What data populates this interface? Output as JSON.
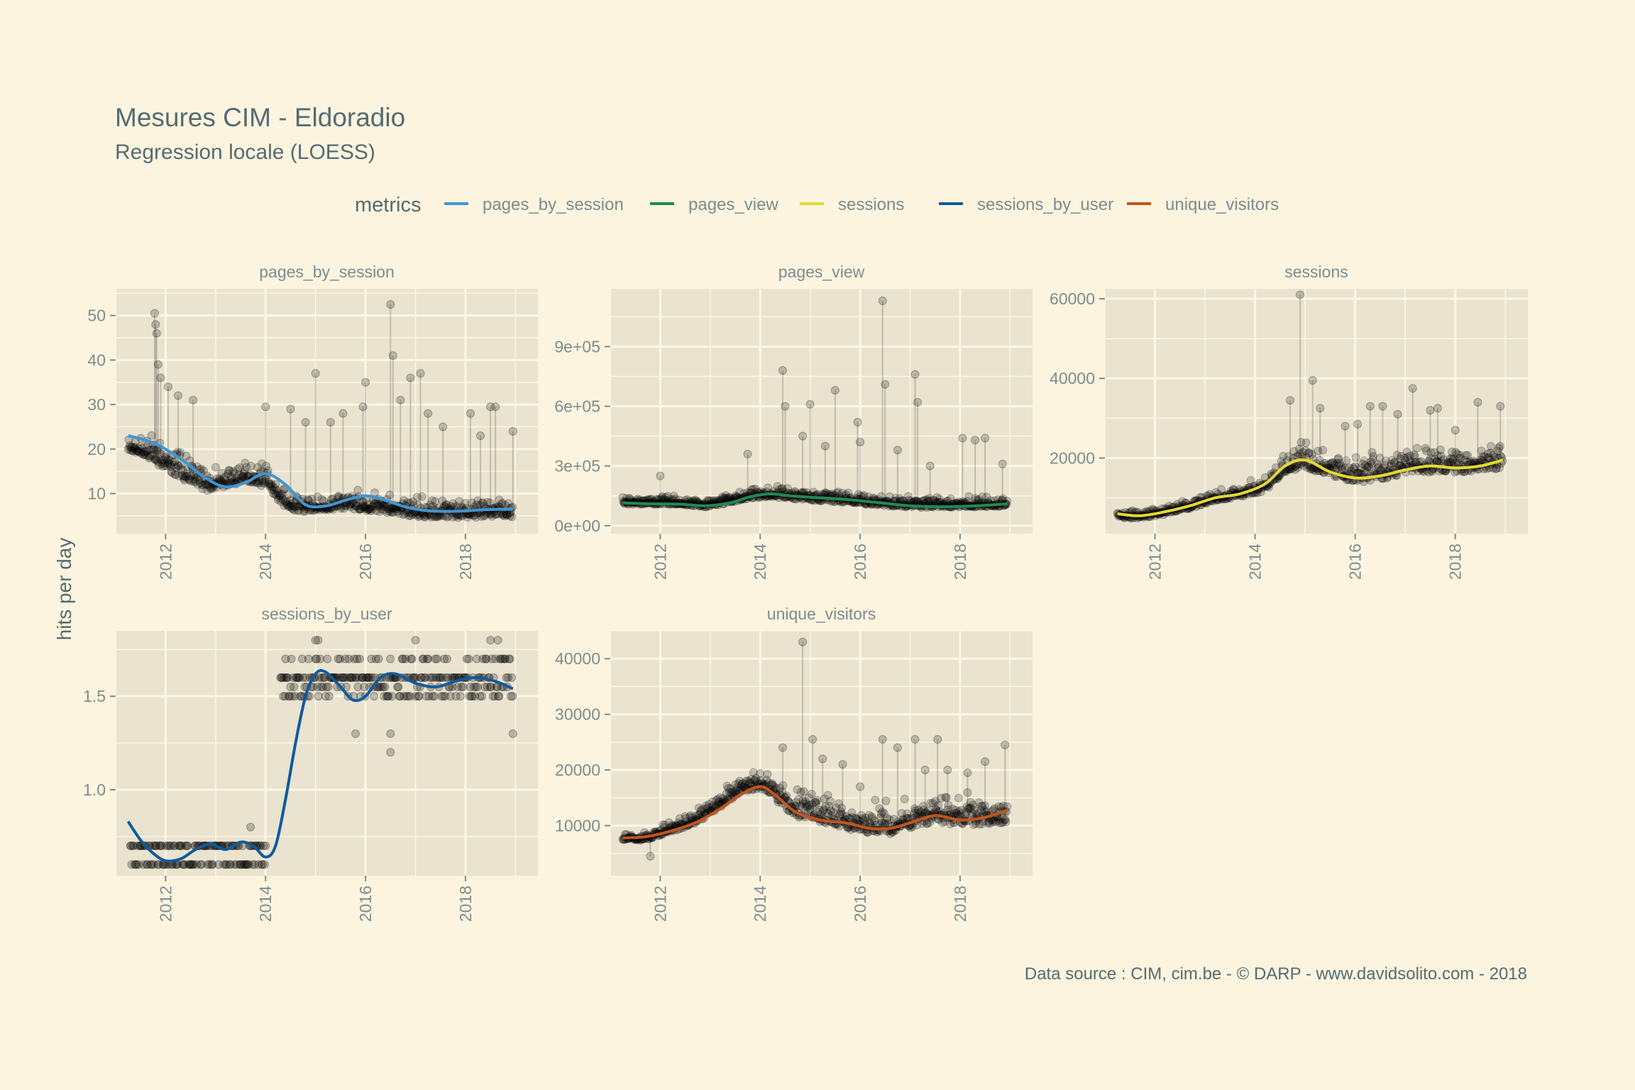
{
  "colors": {
    "page_background": "#fcf4de",
    "panel_background": "#e9e3cf",
    "grid": "#fcf6e6",
    "point": "#000000",
    "text": "#556b73",
    "muted_text": "#7d8c90"
  },
  "chart_data": {
    "type": "scatter",
    "title": "Mesures CIM - Eldoradio",
    "subtitle": "Regression locale (LOESS)",
    "ylabel": "hits per day",
    "xlabel": "",
    "caption": "Data source : CIM, cim.be - © DARP - www.davidsolito.com - 2018",
    "legend": {
      "title": "metrics",
      "position": "top",
      "entries": [
        {
          "name": "pages_by_session",
          "color": "#3d96d6"
        },
        {
          "name": "pages_view",
          "color": "#1e8a54"
        },
        {
          "name": "sessions",
          "color": "#e5d832"
        },
        {
          "name": "sessions_by_user",
          "color": "#0f5a9e"
        },
        {
          "name": "unique_visitors",
          "color": "#c2541e"
        }
      ]
    },
    "grid": true,
    "x_ticks": [
      2012,
      2014,
      2016,
      2018
    ],
    "xlim": [
      2011.0,
      2019.45
    ],
    "panels": [
      {
        "metric": "pages_by_session",
        "color": "#3d96d6",
        "ylim": [
          1,
          56
        ],
        "y_ticks": [
          10,
          20,
          30,
          40,
          50
        ],
        "y_tick_labels": [
          "10",
          "20",
          "30",
          "40",
          "50"
        ],
        "smooth_x": [
          2011.25,
          2011.6,
          2012.0,
          2012.4,
          2012.8,
          2013.2,
          2013.6,
          2014.0,
          2014.4,
          2014.8,
          2015.2,
          2015.6,
          2016.0,
          2016.4,
          2016.8,
          2017.2,
          2017.6,
          2018.0,
          2018.4,
          2018.95
        ],
        "smooth_y": [
          23,
          22,
          20,
          17,
          13.5,
          11.5,
          12.5,
          14.5,
          12,
          7.5,
          7.2,
          8.5,
          9.5,
          8.5,
          7,
          6.2,
          6,
          6.1,
          6.4,
          6.5
        ],
        "points": {
          "level": [
            [
              2011.25,
              20
            ],
            [
              2011.6,
              19
            ],
            [
              2012.0,
              16
            ],
            [
              2012.4,
              13
            ],
            [
              2012.8,
              11
            ],
            [
              2013.2,
              12
            ],
            [
              2013.6,
              13
            ],
            [
              2014.0,
              12
            ],
            [
              2014.4,
              7
            ],
            [
              2014.8,
              6
            ],
            [
              2015.6,
              7
            ],
            [
              2016.4,
              6
            ],
            [
              2017.2,
              5
            ],
            [
              2018.0,
              5
            ],
            [
              2018.95,
              5
            ]
          ],
          "spread": [
            [
              2011.25,
              4
            ],
            [
              2011.6,
              6
            ],
            [
              2012.0,
              9
            ],
            [
              2012.4,
              8
            ],
            [
              2012.8,
              5
            ],
            [
              2013.2,
              5
            ],
            [
              2013.6,
              5
            ],
            [
              2014.0,
              6
            ],
            [
              2014.4,
              4
            ],
            [
              2015.0,
              4
            ],
            [
              2016.0,
              5
            ],
            [
              2017.0,
              5
            ],
            [
              2018.0,
              5
            ],
            [
              2018.95,
              5
            ]
          ],
          "spikes": [
            [
              2011.78,
              50.5
            ],
            [
              2011.8,
              48
            ],
            [
              2011.82,
              46
            ],
            [
              2011.85,
              39
            ],
            [
              2011.9,
              36
            ],
            [
              2012.05,
              34
            ],
            [
              2012.25,
              32
            ],
            [
              2012.55,
              31
            ],
            [
              2014.0,
              29.5
            ],
            [
              2014.5,
              29
            ],
            [
              2014.8,
              26
            ],
            [
              2015.0,
              37
            ],
            [
              2015.3,
              26
            ],
            [
              2015.55,
              28
            ],
            [
              2015.95,
              29.5
            ],
            [
              2016.0,
              35
            ],
            [
              2016.5,
              52.5
            ],
            [
              2016.55,
              41
            ],
            [
              2016.7,
              31
            ],
            [
              2016.9,
              36
            ],
            [
              2017.1,
              37
            ],
            [
              2017.25,
              28
            ],
            [
              2017.55,
              25
            ],
            [
              2018.1,
              28
            ],
            [
              2018.3,
              23
            ],
            [
              2018.5,
              29.5
            ],
            [
              2018.6,
              29.5
            ],
            [
              2018.95,
              24
            ]
          ]
        }
      },
      {
        "metric": "pages_view",
        "color": "#1e8a54",
        "ylim": [
          -40000,
          1190000
        ],
        "y_ticks": [
          0,
          300000,
          600000,
          900000
        ],
        "y_tick_labels": [
          "0e+00",
          "3e+05",
          "6e+05",
          "9e+05"
        ],
        "smooth_x": [
          2011.25,
          2011.8,
          2012.4,
          2012.9,
          2013.4,
          2013.8,
          2014.2,
          2014.6,
          2015.2,
          2015.8,
          2016.4,
          2017.0,
          2017.6,
          2018.2,
          2018.95
        ],
        "smooth_y": [
          115000,
          110000,
          108000,
          100000,
          115000,
          145000,
          160000,
          150000,
          140000,
          130000,
          115000,
          100000,
          95000,
          98000,
          110000
        ],
        "points": {
          "level": [
            [
              2011.25,
              110000
            ],
            [
              2012.4,
              110000
            ],
            [
              2012.9,
              95000
            ],
            [
              2013.8,
              140000
            ],
            [
              2014.2,
              150000
            ],
            [
              2014.6,
              140000
            ],
            [
              2015.8,
              120000
            ],
            [
              2016.4,
              105000
            ],
            [
              2017.2,
              95000
            ],
            [
              2018.95,
              100000
            ]
          ],
          "spread": [
            [
              2011.25,
              40000
            ],
            [
              2014.0,
              60000
            ],
            [
              2015.0,
              70000
            ],
            [
              2016.0,
              70000
            ],
            [
              2017.0,
              60000
            ],
            [
              2018.95,
              60000
            ]
          ],
          "spikes": [
            [
              2012.0,
              250000
            ],
            [
              2013.75,
              360000
            ],
            [
              2014.45,
              780000
            ],
            [
              2014.5,
              600000
            ],
            [
              2014.85,
              450000
            ],
            [
              2015.0,
              610000
            ],
            [
              2015.3,
              400000
            ],
            [
              2015.5,
              680000
            ],
            [
              2015.95,
              520000
            ],
            [
              2016.0,
              420000
            ],
            [
              2016.45,
              1130000
            ],
            [
              2016.5,
              710000
            ],
            [
              2016.75,
              380000
            ],
            [
              2017.1,
              760000
            ],
            [
              2017.15,
              620000
            ],
            [
              2017.4,
              300000
            ],
            [
              2018.05,
              440000
            ],
            [
              2018.3,
              430000
            ],
            [
              2018.5,
              440000
            ],
            [
              2018.85,
              310000
            ]
          ]
        }
      },
      {
        "metric": "sessions",
        "color": "#e5d832",
        "ylim": [
          1000,
          62500
        ],
        "y_ticks": [
          20000,
          40000,
          60000
        ],
        "y_tick_labels": [
          "20000",
          "40000",
          "60000"
        ],
        "smooth_x": [
          2011.25,
          2011.7,
          2012.2,
          2012.7,
          2013.2,
          2013.7,
          2014.2,
          2014.6,
          2015.0,
          2015.5,
          2016.0,
          2016.5,
          2017.0,
          2017.5,
          2018.0,
          2018.5,
          2018.95
        ],
        "smooth_y": [
          6000,
          5500,
          6500,
          8000,
          10000,
          11000,
          13500,
          18000,
          19500,
          16500,
          15000,
          15500,
          17000,
          18000,
          17500,
          18000,
          19500
        ],
        "points": {
          "level": [
            [
              2011.25,
              5000
            ],
            [
              2011.7,
              5000
            ],
            [
              2012.2,
              6000
            ],
            [
              2012.7,
              7500
            ],
            [
              2013.2,
              9500
            ],
            [
              2013.7,
              10500
            ],
            [
              2014.2,
              12000
            ],
            [
              2014.6,
              17000
            ],
            [
              2015.0,
              18000
            ],
            [
              2015.5,
              16000
            ],
            [
              2016.0,
              14500
            ],
            [
              2016.5,
              15000
            ],
            [
              2017.0,
              16500
            ],
            [
              2017.5,
              17000
            ],
            [
              2018.0,
              17000
            ],
            [
              2018.95,
              17500
            ]
          ],
          "spread": [
            [
              2011.25,
              2000
            ],
            [
              2013.5,
              3000
            ],
            [
              2014.4,
              5000
            ],
            [
              2015.0,
              8000
            ],
            [
              2016.0,
              8000
            ],
            [
              2017.0,
              8000
            ],
            [
              2018.95,
              7000
            ]
          ],
          "spikes": [
            [
              2014.7,
              34500
            ],
            [
              2014.9,
              61000
            ],
            [
              2015.15,
              39500
            ],
            [
              2015.3,
              32500
            ],
            [
              2015.8,
              28000
            ],
            [
              2016.05,
              28500
            ],
            [
              2016.3,
              33000
            ],
            [
              2016.55,
              33000
            ],
            [
              2016.85,
              31000
            ],
            [
              2017.15,
              37500
            ],
            [
              2017.5,
              32000
            ],
            [
              2017.65,
              32500
            ],
            [
              2018.0,
              27000
            ],
            [
              2018.45,
              34000
            ],
            [
              2018.9,
              33000
            ]
          ]
        }
      },
      {
        "metric": "sessions_by_user",
        "color": "#0f5a9e",
        "ylim": [
          0.54,
          1.85
        ],
        "y_ticks": [
          1.0,
          1.5
        ],
        "y_tick_labels": [
          "1.0",
          "1.5"
        ],
        "smooth_x": [
          2011.25,
          2011.5,
          2011.75,
          2012.0,
          2012.3,
          2012.6,
          2012.9,
          2013.2,
          2013.5,
          2013.75,
          2014.0,
          2014.2,
          2014.4,
          2014.6,
          2014.8,
          2015.0,
          2015.2,
          2015.5,
          2015.75,
          2016.0,
          2016.3,
          2016.6,
          2017.0,
          2017.4,
          2017.8,
          2018.2,
          2018.6,
          2018.95
        ],
        "smooth_y": [
          0.83,
          0.73,
          0.66,
          0.62,
          0.63,
          0.68,
          0.71,
          0.68,
          0.72,
          0.7,
          0.64,
          0.7,
          0.95,
          1.25,
          1.5,
          1.62,
          1.63,
          1.55,
          1.48,
          1.5,
          1.6,
          1.62,
          1.57,
          1.55,
          1.58,
          1.6,
          1.58,
          1.54
        ]
      },
      {
        "metric": "unique_visitors",
        "color": "#c2541e",
        "ylim": [
          1000,
          45000
        ],
        "y_ticks": [
          10000,
          20000,
          30000,
          40000
        ],
        "y_tick_labels": [
          "10000",
          "20000",
          "30000",
          "40000"
        ],
        "smooth_x": [
          2011.25,
          2011.7,
          2012.2,
          2012.7,
          2013.2,
          2013.6,
          2014.0,
          2014.3,
          2014.7,
          2015.2,
          2015.7,
          2016.2,
          2016.6,
          2017.0,
          2017.5,
          2018.0,
          2018.5,
          2018.95
        ],
        "smooth_y": [
          7800,
          8000,
          9000,
          10500,
          13000,
          15500,
          17000,
          15500,
          12500,
          11000,
          10500,
          9500,
          9500,
          10500,
          11800,
          11000,
          11500,
          12800
        ],
        "points": {
          "level": [
            [
              2011.25,
              7500
            ],
            [
              2011.7,
              7500
            ],
            [
              2012.2,
              9000
            ],
            [
              2012.7,
              10500
            ],
            [
              2013.2,
              13500
            ],
            [
              2013.6,
              16000
            ],
            [
              2014.0,
              17000
            ],
            [
              2014.3,
              15000
            ],
            [
              2014.7,
              12000
            ],
            [
              2015.2,
              11000
            ],
            [
              2015.7,
              10000
            ],
            [
              2016.2,
              9000
            ],
            [
              2016.6,
              9000
            ],
            [
              2017.0,
              10000
            ],
            [
              2017.5,
              11000
            ],
            [
              2018.0,
              10500
            ],
            [
              2018.95,
              11000
            ]
          ],
          "spread": [
            [
              2011.25,
              1500
            ],
            [
              2013.8,
              3500
            ],
            [
              2014.5,
              6000
            ],
            [
              2016.0,
              6000
            ],
            [
              2017.5,
              6000
            ],
            [
              2018.95,
              6000
            ]
          ],
          "spikes": [
            [
              2011.8,
              4500
            ],
            [
              2014.45,
              24000
            ],
            [
              2014.85,
              43000
            ],
            [
              2015.05,
              25500
            ],
            [
              2015.25,
              22000
            ],
            [
              2015.65,
              21000
            ],
            [
              2016.0,
              17000
            ],
            [
              2016.45,
              25500
            ],
            [
              2016.75,
              24000
            ],
            [
              2017.1,
              25500
            ],
            [
              2017.3,
              20000
            ],
            [
              2017.55,
              25500
            ],
            [
              2017.75,
              20000
            ],
            [
              2018.15,
              19500
            ],
            [
              2018.5,
              21500
            ],
            [
              2018.9,
              24500
            ]
          ]
        }
      }
    ]
  }
}
